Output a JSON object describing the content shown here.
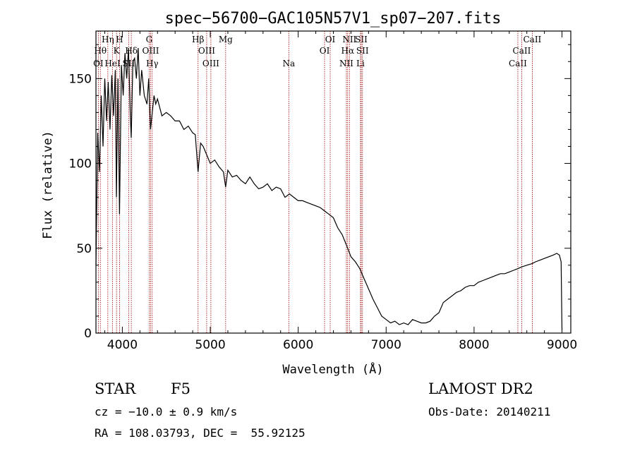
{
  "colors": {
    "spectrum": "#000000",
    "line_marker": "#a00000",
    "axis": "#000000"
  },
  "info": {
    "object_class": "STAR",
    "subclass": "F5",
    "survey": "LAMOST DR2",
    "redshift": "cz = −10.0 ± 0.9 km/s",
    "obs_date": "Obs-Date: 20140211",
    "coords": "RA = 108.03793, DEC =  55.92125"
  },
  "chart_data": {
    "type": "line",
    "title": "spec−56700−GAC105N57V1_sp07−207.fits",
    "xlabel": "Wavelength (Å)",
    "ylabel": "Flux (relative)",
    "xlim": [
      3700,
      9100
    ],
    "ylim": [
      0,
      178
    ],
    "grid": false,
    "legend": "none",
    "x_ticks": [
      4000,
      5000,
      6000,
      7000,
      8000,
      9000
    ],
    "y_ticks": [
      0,
      50,
      100,
      150
    ],
    "series": [
      {
        "x": [
          3700,
          3720,
          3740,
          3760,
          3780,
          3800,
          3820,
          3840,
          3860,
          3880,
          3900,
          3920,
          3933,
          3950,
          3968,
          3990,
          4010,
          4030,
          4050,
          4070,
          4090,
          4101,
          4120,
          4140,
          4160,
          4180,
          4200,
          4220,
          4250,
          4280,
          4300,
          4320,
          4340,
          4360,
          4380,
          4400,
          4450,
          4500,
          4550,
          4600,
          4650,
          4700,
          4750,
          4800,
          4830,
          4861,
          4890,
          4920,
          4960,
          5000,
          5050,
          5100,
          5150,
          5175,
          5200,
          5250,
          5300,
          5350,
          5400,
          5450,
          5500,
          5550,
          5600,
          5650,
          5700,
          5750,
          5800,
          5850,
          5900,
          5950,
          6000,
          6050,
          6100,
          6150,
          6200,
          6250,
          6300,
          6350,
          6400,
          6450,
          6500,
          6563,
          6600,
          6650,
          6700,
          6750,
          6800,
          6850,
          6900,
          6950,
          7000,
          7050,
          7100,
          7150,
          7200,
          7250,
          7300,
          7350,
          7400,
          7450,
          7500,
          7550,
          7600,
          7650,
          7700,
          7750,
          7800,
          7850,
          7900,
          7950,
          8000,
          8050,
          8100,
          8150,
          8200,
          8250,
          8300,
          8350,
          8400,
          8450,
          8500,
          8542,
          8600,
          8662,
          8700,
          8750,
          8800,
          8850,
          8900,
          8940,
          8970,
          8990,
          9000
        ],
        "y": [
          40,
          118,
          95,
          140,
          110,
          150,
          125,
          148,
          120,
          152,
          128,
          155,
          80,
          150,
          70,
          158,
          140,
          165,
          150,
          168,
          130,
          115,
          160,
          162,
          150,
          168,
          140,
          155,
          140,
          135,
          150,
          120,
          130,
          140,
          135,
          138,
          128,
          130,
          128,
          125,
          125,
          120,
          122,
          118,
          117,
          95,
          112,
          110,
          105,
          100,
          102,
          98,
          95,
          86,
          96,
          92,
          93,
          90,
          88,
          92,
          88,
          85,
          86,
          88,
          84,
          86,
          85,
          80,
          82,
          80,
          78,
          78,
          77,
          76,
          75,
          74,
          72,
          70,
          68,
          62,
          58,
          50,
          45,
          42,
          38,
          32,
          26,
          20,
          15,
          10,
          8,
          6,
          7,
          5,
          6,
          5,
          8,
          7,
          6,
          6,
          7,
          10,
          12,
          18,
          20,
          22,
          24,
          25,
          27,
          28,
          28,
          30,
          31,
          32,
          33,
          34,
          35,
          35,
          36,
          37,
          38,
          39,
          40,
          41,
          42,
          43,
          44,
          45,
          46,
          47,
          46,
          42,
          2
        ]
      }
    ],
    "lines": [
      {
        "name": "OI",
        "wl": 3727,
        "row": 3
      },
      {
        "name": "Hθ",
        "wl": 3750,
        "row": 2
      },
      {
        "name": "Hη",
        "wl": 3835,
        "row": 1
      },
      {
        "name": "HeI",
        "wl": 3889,
        "row": 3
      },
      {
        "name": "K",
        "wl": 3934,
        "row": 2
      },
      {
        "name": "H",
        "wl": 3968,
        "row": 1
      },
      {
        "name": "SII",
        "wl": 4072,
        "row": 3
      },
      {
        "name": "Hδ",
        "wl": 4102,
        "row": 2
      },
      {
        "name": "G",
        "wl": 4305,
        "row": 1
      },
      {
        "name": "OIII",
        "wl": 4322,
        "row": 2
      },
      {
        "name": "Hγ",
        "wl": 4340,
        "row": 3
      },
      {
        "name": "Hβ",
        "wl": 4861,
        "row": 1
      },
      {
        "name": "OIII",
        "wl": 4959,
        "row": 2
      },
      {
        "name": "OIII",
        "wl": 5007,
        "row": 3
      },
      {
        "name": "Mg",
        "wl": 5175,
        "row": 1
      },
      {
        "name": "Na",
        "wl": 5893,
        "row": 3
      },
      {
        "name": "OI",
        "wl": 6300,
        "row": 2
      },
      {
        "name": "OI",
        "wl": 6364,
        "row": 1
      },
      {
        "name": "NII",
        "wl": 6548,
        "row": 3
      },
      {
        "name": "NII",
        "wl": 6583,
        "row": 1
      },
      {
        "name": "Hα",
        "wl": 6563,
        "row": 2
      },
      {
        "name": "Li",
        "wl": 6708,
        "row": 3
      },
      {
        "name": "SII",
        "wl": 6717,
        "row": 1
      },
      {
        "name": "SII",
        "wl": 6731,
        "row": 2
      },
      {
        "name": "CaII",
        "wl": 8498,
        "row": 3
      },
      {
        "name": "CaII",
        "wl": 8542,
        "row": 2
      },
      {
        "name": "CaII",
        "wl": 8662,
        "row": 1
      }
    ]
  }
}
